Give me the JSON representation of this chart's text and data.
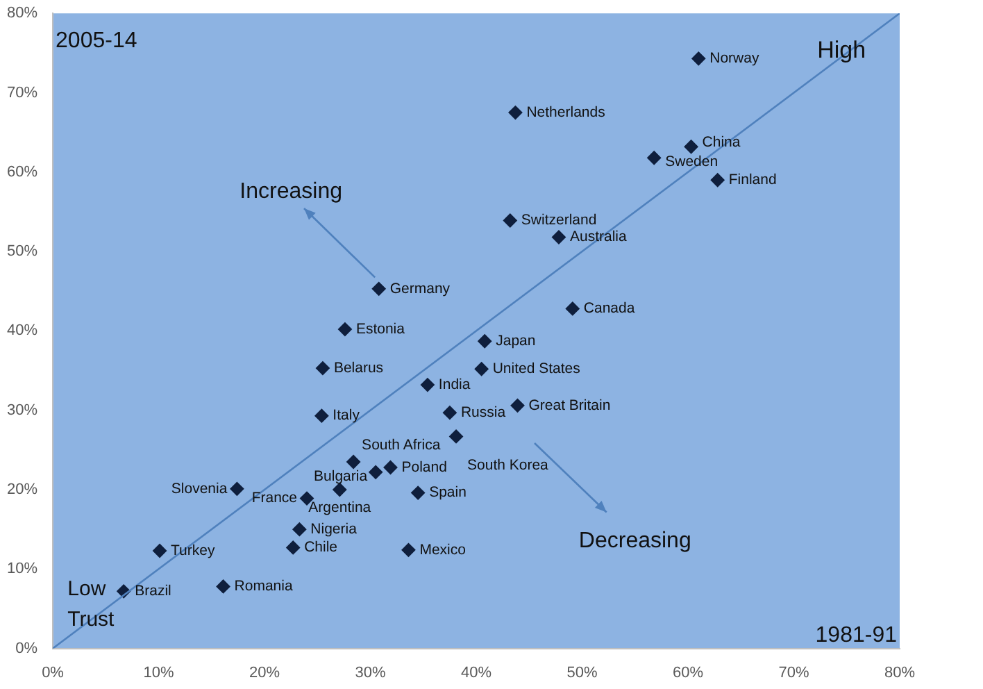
{
  "chart_data": {
    "type": "scatter",
    "xlabel": "1981-91",
    "ylabel": "2005-14",
    "xlim": [
      0,
      80
    ],
    "ylim": [
      0,
      80
    ],
    "xticks": [
      {
        "value": 0,
        "label": "0%"
      },
      {
        "value": 10,
        "label": "10%"
      },
      {
        "value": 20,
        "label": "20%"
      },
      {
        "value": 30,
        "label": "30%"
      },
      {
        "value": 40,
        "label": "40%"
      },
      {
        "value": 50,
        "label": "50%"
      },
      {
        "value": 60,
        "label": "60%"
      },
      {
        "value": 70,
        "label": "70%"
      },
      {
        "value": 80,
        "label": "80%"
      }
    ],
    "yticks": [
      {
        "value": 0,
        "label": "0%"
      },
      {
        "value": 10,
        "label": "10%"
      },
      {
        "value": 20,
        "label": "20%"
      },
      {
        "value": 30,
        "label": "30%"
      },
      {
        "value": 40,
        "label": "40%"
      },
      {
        "value": 50,
        "label": "50%"
      },
      {
        "value": 60,
        "label": "60%"
      },
      {
        "value": 70,
        "label": "70%"
      },
      {
        "value": 80,
        "label": "80%"
      }
    ],
    "series": [
      {
        "type": "line",
        "color": "#4f81bd",
        "x": [
          0,
          80
        ],
        "values": [
          0,
          80
        ]
      },
      {
        "marker": "diamond",
        "color": "#0f1f3d",
        "x": [
          61.0,
          43.7,
          60.3,
          56.8,
          62.8,
          43.2,
          47.8,
          49.1,
          40.8,
          40.5,
          43.9,
          30.8,
          27.6,
          25.5,
          35.4,
          37.5,
          25.4,
          38.1,
          28.4,
          31.9,
          30.5,
          17.4,
          27.1,
          24.0,
          34.5,
          23.3,
          22.7,
          33.6,
          10.1,
          16.1,
          6.7
        ],
        "values": [
          74.3,
          67.5,
          63.2,
          61.8,
          59.0,
          53.9,
          51.8,
          42.8,
          38.7,
          35.2,
          30.6,
          45.3,
          40.2,
          35.3,
          33.2,
          29.7,
          29.3,
          26.7,
          23.5,
          22.8,
          22.2,
          20.1,
          20.0,
          18.9,
          19.6,
          15.0,
          12.7,
          12.4,
          12.3,
          7.8,
          7.2
        ]
      }
    ],
    "annotations": [
      {
        "text": "Norway",
        "x": 61.0,
        "y": 74.3
      },
      {
        "text": "Netherlands",
        "x": 43.7,
        "y": 67.5
      },
      {
        "text": "China",
        "x": 60.3,
        "y": 63.2
      },
      {
        "text": "Sweden",
        "x": 56.8,
        "y": 61.8
      },
      {
        "text": "Finland",
        "x": 62.8,
        "y": 59.0
      },
      {
        "text": "Switzerland",
        "x": 43.2,
        "y": 53.9
      },
      {
        "text": "Australia",
        "x": 47.8,
        "y": 51.8
      },
      {
        "text": "Canada",
        "x": 49.1,
        "y": 42.8
      },
      {
        "text": "Japan",
        "x": 40.8,
        "y": 38.7
      },
      {
        "text": "United States",
        "x": 40.5,
        "y": 35.2
      },
      {
        "text": "Great Britain",
        "x": 43.9,
        "y": 30.6
      },
      {
        "text": "Germany",
        "x": 30.8,
        "y": 45.3
      },
      {
        "text": "Estonia",
        "x": 27.6,
        "y": 40.2
      },
      {
        "text": "Belarus",
        "x": 25.5,
        "y": 35.3
      },
      {
        "text": "India",
        "x": 35.4,
        "y": 33.2
      },
      {
        "text": "Russia",
        "x": 37.5,
        "y": 29.7
      },
      {
        "text": "Italy",
        "x": 25.4,
        "y": 29.3
      },
      {
        "text": "South Korea",
        "x": 38.1,
        "y": 26.7
      },
      {
        "text": "South Africa",
        "x": 28.4,
        "y": 23.5
      },
      {
        "text": "Poland",
        "x": 31.9,
        "y": 22.8
      },
      {
        "text": "Bulgaria",
        "x": 30.5,
        "y": 22.2
      },
      {
        "text": "Slovenia",
        "x": 17.4,
        "y": 20.1
      },
      {
        "text": "Argentina",
        "x": 27.1,
        "y": 20.0
      },
      {
        "text": "France",
        "x": 24.0,
        "y": 18.9
      },
      {
        "text": "Spain",
        "x": 34.5,
        "y": 19.6
      },
      {
        "text": "Nigeria",
        "x": 23.3,
        "y": 15.0
      },
      {
        "text": "Chile",
        "x": 22.7,
        "y": 12.7
      },
      {
        "text": "Mexico",
        "x": 33.6,
        "y": 12.4
      },
      {
        "text": "Turkey",
        "x": 10.1,
        "y": 12.3
      },
      {
        "text": "Romania",
        "x": 16.1,
        "y": 7.8
      },
      {
        "text": "Brazil",
        "x": 6.7,
        "y": 7.2
      },
      "High",
      "Low Trust",
      "Increasing",
      "Decreasing"
    ]
  }
}
